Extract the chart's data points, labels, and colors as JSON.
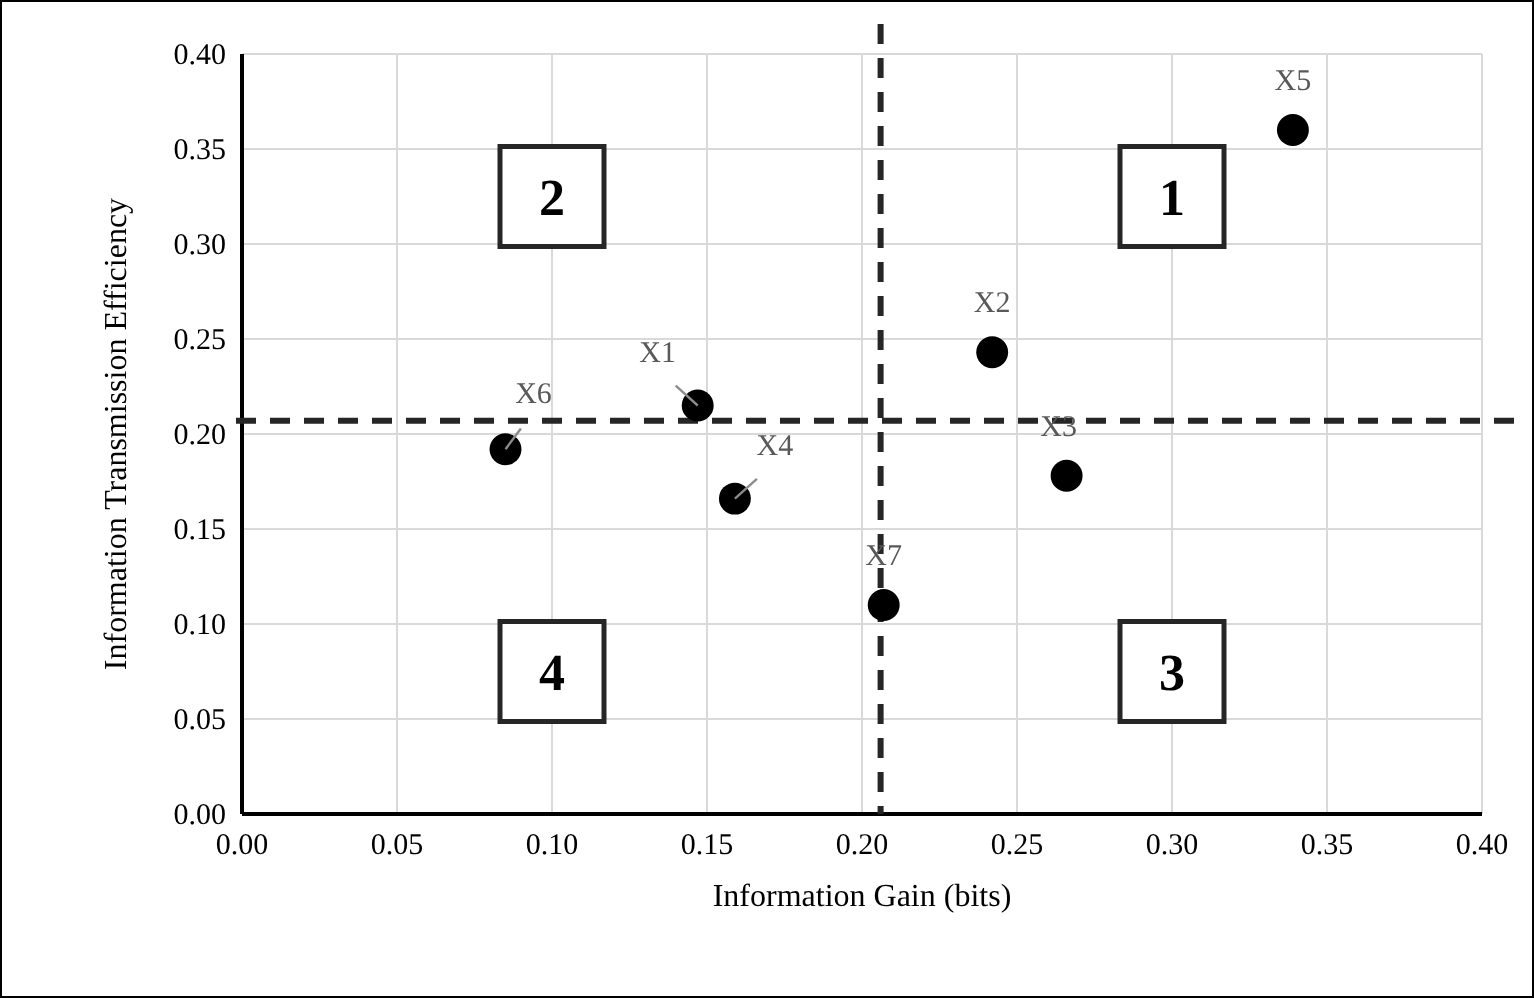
{
  "chart_data": {
    "type": "scatter",
    "xlabel": "Information Gain (bits)",
    "ylabel": "Information Transmission Efficiency",
    "xlim": [
      0,
      0.4
    ],
    "ylim": [
      0,
      0.4
    ],
    "xticks": [
      {
        "value": 0,
        "label": "0.00"
      },
      {
        "value": 0.05,
        "label": "0.05"
      },
      {
        "value": 0.1,
        "label": "0.10"
      },
      {
        "value": 0.15,
        "label": "0.15"
      },
      {
        "value": 0.2,
        "label": "0.20"
      },
      {
        "value": 0.25,
        "label": "0.25"
      },
      {
        "value": 0.3,
        "label": "0.30"
      },
      {
        "value": 0.35,
        "label": "0.35"
      },
      {
        "value": 0.4,
        "label": "0.40"
      }
    ],
    "yticks": [
      {
        "value": 0,
        "label": "0.00"
      },
      {
        "value": 0.05,
        "label": "0.05"
      },
      {
        "value": 0.1,
        "label": "0.10"
      },
      {
        "value": 0.15,
        "label": "0.15"
      },
      {
        "value": 0.2,
        "label": "0.20"
      },
      {
        "value": 0.25,
        "label": "0.25"
      },
      {
        "value": 0.3,
        "label": "0.30"
      },
      {
        "value": 0.35,
        "label": "0.35"
      },
      {
        "value": 0.4,
        "label": "0.40"
      }
    ],
    "series": [
      {
        "name": "X1",
        "color": "#000000",
        "x": [
          0.147
        ],
        "values": [
          0.215
        ]
      },
      {
        "name": "X2",
        "color": "#000000",
        "x": [
          0.242
        ],
        "values": [
          0.243
        ]
      },
      {
        "name": "X3",
        "color": "#000000",
        "x": [
          0.266
        ],
        "values": [
          0.178
        ]
      },
      {
        "name": "X4",
        "color": "#000000",
        "x": [
          0.159
        ],
        "values": [
          0.166
        ]
      },
      {
        "name": "X5",
        "color": "#000000",
        "x": [
          0.339
        ],
        "values": [
          0.36
        ]
      },
      {
        "name": "X6",
        "color": "#000000",
        "x": [
          0.085
        ],
        "values": [
          0.192
        ]
      },
      {
        "name": "X7",
        "color": "#000000",
        "x": [
          0.207
        ],
        "values": [
          0.11
        ]
      }
    ],
    "ref_lines": [
      {
        "axis": "y",
        "value": 0.207,
        "color": "#262626",
        "line_style": "dashed"
      },
      {
        "axis": "x",
        "value": 0.206,
        "color": "#262626",
        "line_style": "dashed"
      }
    ],
    "annotations": [
      "1",
      "2",
      "3",
      "4"
    ],
    "grid": true,
    "marker": "circle"
  }
}
